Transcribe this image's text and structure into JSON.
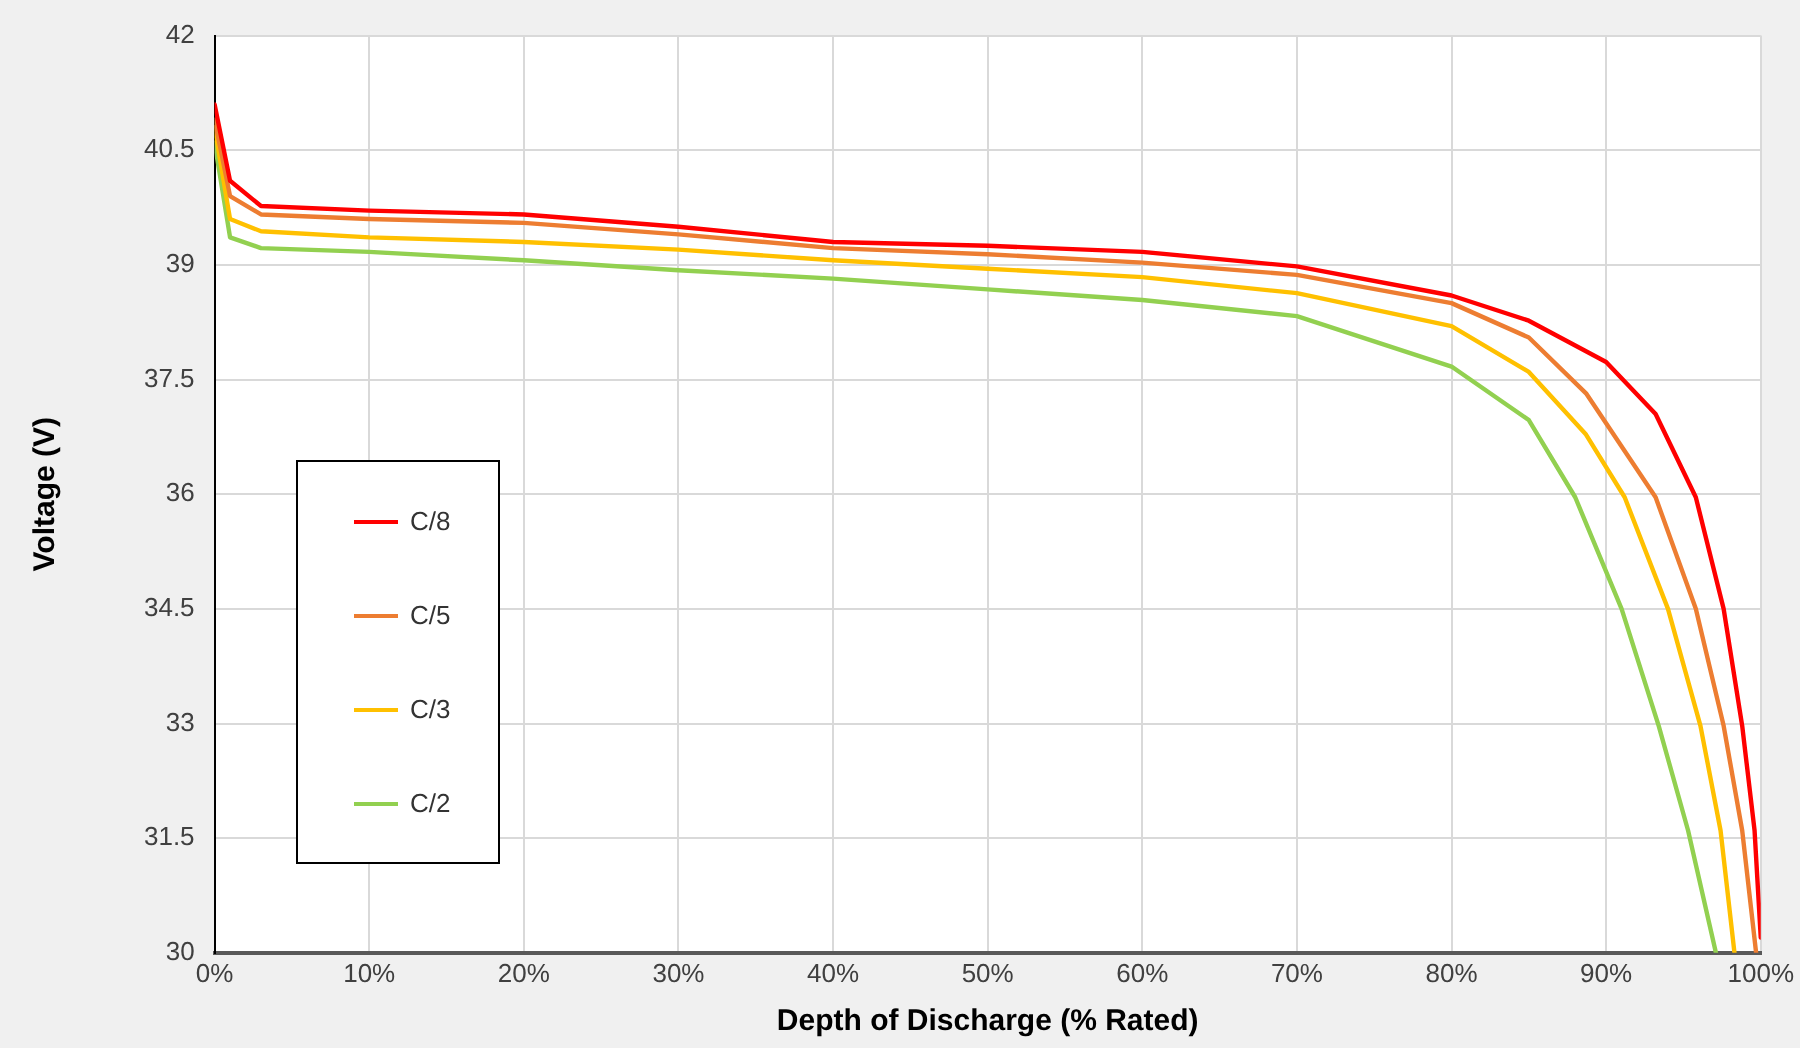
{
  "chart_data": {
    "type": "line",
    "xlabel": "Depth of Discharge (% Rated)",
    "ylabel": "Voltage (V)",
    "xlim": [
      0,
      100
    ],
    "xticks": [
      {
        "value": 0,
        "label": "0%"
      },
      {
        "value": 10,
        "label": "10%"
      },
      {
        "value": 20,
        "label": "20%"
      },
      {
        "value": 30,
        "label": "30%"
      },
      {
        "value": 40,
        "label": "40%"
      },
      {
        "value": 50,
        "label": "50%"
      },
      {
        "value": 60,
        "label": "60%"
      },
      {
        "value": 70,
        "label": "70%"
      },
      {
        "value": 80,
        "label": "80%"
      },
      {
        "value": 90,
        "label": "90%"
      },
      {
        "value": 100,
        "label": "100%"
      }
    ],
    "ylim": [
      30,
      42
    ],
    "yticks": [
      30,
      31.5,
      33,
      34.5,
      36,
      37.5,
      39,
      40.5,
      42
    ],
    "grid": true,
    "legend": "left",
    "marker": "none",
    "line_style": "solid",
    "series": [
      {
        "name": "C/8",
        "color": "#ff0000",
        "x": [
          0,
          1,
          3,
          10,
          20,
          30,
          40,
          50,
          60,
          70,
          80,
          85,
          90,
          93.2,
          95.8,
          97.6,
          98.8,
          99.6,
          100
        ],
        "values": [
          41.1,
          40.1,
          39.77,
          39.71,
          39.66,
          39.5,
          39.3,
          39.25,
          39.17,
          38.98,
          38.6,
          38.27,
          37.73,
          37.05,
          35.96,
          34.5,
          32.97,
          31.6,
          30.2
        ]
      },
      {
        "name": "C/5",
        "color": "#ed7d31",
        "x": [
          0,
          1,
          3,
          10,
          20,
          30,
          40,
          50,
          60,
          70,
          80,
          85,
          88.7,
          93.2,
          95.8,
          97.6,
          98.8,
          99.7
        ],
        "values": [
          40.9,
          39.9,
          39.66,
          39.6,
          39.55,
          39.4,
          39.22,
          39.14,
          39.03,
          38.87,
          38.5,
          38.05,
          37.32,
          35.96,
          34.5,
          32.97,
          31.6,
          30
        ]
      },
      {
        "name": "C/3",
        "color": "#ffc000",
        "x": [
          0,
          1,
          3,
          10,
          20,
          30,
          40,
          50,
          60,
          70,
          80,
          85,
          88.7,
          91.2,
          94,
          96.1,
          97.4,
          98.3
        ],
        "values": [
          40.8,
          39.6,
          39.44,
          39.36,
          39.3,
          39.2,
          39.06,
          38.95,
          38.84,
          38.63,
          38.2,
          37.6,
          36.78,
          35.96,
          34.5,
          32.97,
          31.6,
          30
        ]
      },
      {
        "name": "C/2",
        "color": "#92d050",
        "x": [
          0,
          1,
          3,
          10,
          20,
          30,
          40,
          50,
          60,
          70,
          80,
          85,
          88,
          91,
          93.4,
          95.3,
          97.1
        ],
        "values": [
          40.6,
          39.36,
          39.22,
          39.17,
          39.06,
          38.93,
          38.82,
          38.68,
          38.54,
          38.33,
          37.67,
          36.97,
          35.96,
          34.5,
          32.97,
          31.6,
          30
        ]
      }
    ]
  }
}
